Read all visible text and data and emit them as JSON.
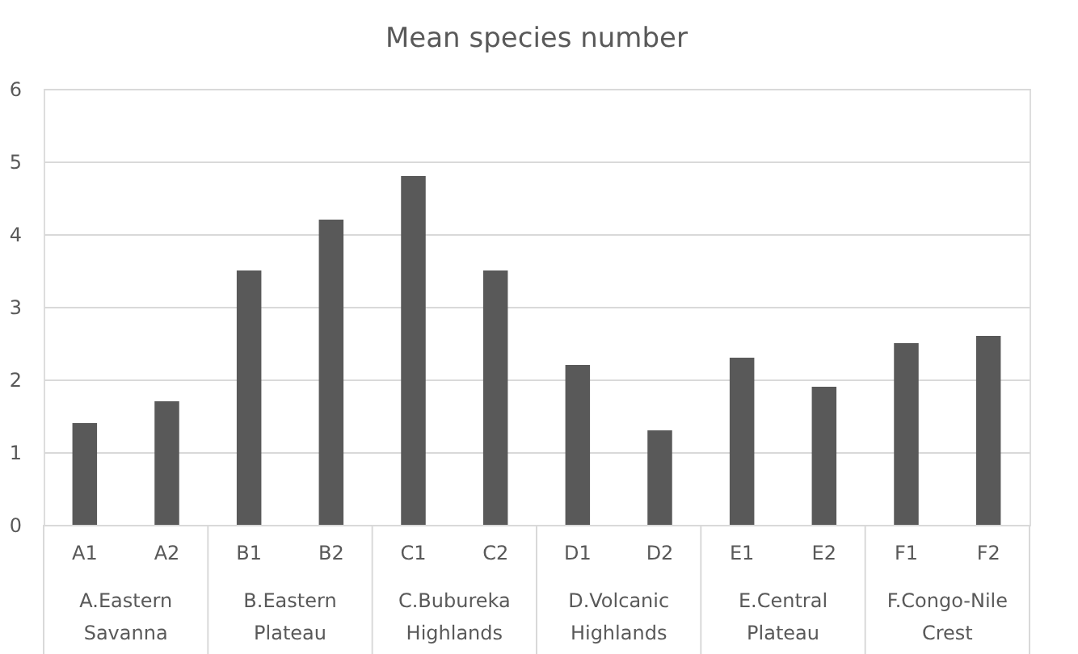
{
  "chart_data": {
    "type": "bar",
    "title": "Mean species number",
    "categories": [
      "A1",
      "A2",
      "B1",
      "B2",
      "C1",
      "C2",
      "D1",
      "D2",
      "E1",
      "E2",
      "F1",
      "F2"
    ],
    "values": [
      1.4,
      1.7,
      3.5,
      4.2,
      4.8,
      3.5,
      2.2,
      1.3,
      2.3,
      1.9,
      2.5,
      2.6
    ],
    "color": "#595959",
    "ylim": [
      0,
      6
    ],
    "yticks": [
      0,
      1,
      2,
      3,
      4,
      5,
      6
    ],
    "grid": "y",
    "annotations": [
      "A.Eastern Savanna",
      "B.Eastern Plateau",
      "C.Bubureka Highlands",
      "D.Volcanic Highlands",
      "E.Central Plateau",
      "F.Congo-Nile Crest"
    ]
  }
}
